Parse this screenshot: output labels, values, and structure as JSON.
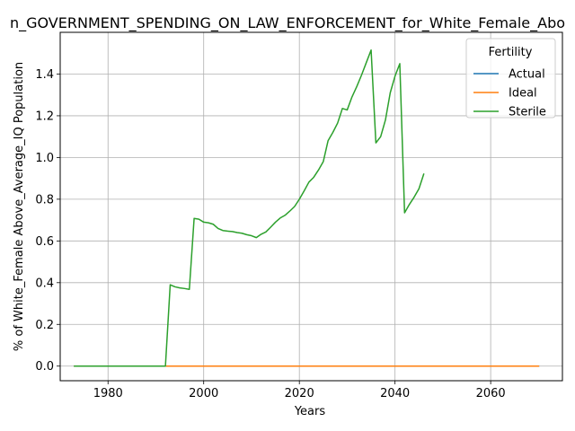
{
  "chart_data": {
    "type": "line",
    "title": "n_GOVERNMENT_SPENDING_ON_LAW_ENFORCEMENT_for_White_Female_Abo",
    "xlabel": "Years",
    "ylabel": "% of White_Female Above_Average_IQ Population",
    "xlim": [
      1970,
      2075
    ],
    "ylim": [
      -0.07,
      1.6
    ],
    "xticks": [
      1980,
      2000,
      2020,
      2040,
      2060
    ],
    "yticks": [
      0.0,
      0.2,
      0.4,
      0.6,
      0.8,
      1.0,
      1.2,
      1.4
    ],
    "xtick_labels": [
      "1980",
      "2000",
      "2020",
      "2040",
      "2060"
    ],
    "ytick_labels": [
      "0.0",
      "0.2",
      "0.4",
      "0.6",
      "0.8",
      "1.0",
      "1.2",
      "1.4"
    ],
    "grid": true,
    "legend": {
      "title": "Fertility",
      "placement": "top-right",
      "entries": [
        "Actual",
        "Ideal",
        "Sterile"
      ]
    },
    "series": [
      {
        "name": "Actual",
        "color": "#1f77b4",
        "x": [
          1973,
          1980,
          1990,
          2000,
          2010,
          2020,
          2030,
          2040,
          2050,
          2060,
          2070
        ],
        "y": [
          0,
          0,
          0,
          0,
          0,
          0,
          0,
          0,
          0,
          0,
          0
        ]
      },
      {
        "name": "Ideal",
        "color": "#ff7f0e",
        "x": [
          1973,
          1980,
          1990,
          2000,
          2010,
          2020,
          2030,
          2040,
          2050,
          2060,
          2070
        ],
        "y": [
          0,
          0,
          0,
          0,
          0,
          0,
          0,
          0,
          0,
          0,
          0
        ]
      },
      {
        "name": "Sterile",
        "color": "#2ca02c",
        "x": [
          1973,
          1992,
          1993,
          1994,
          1995,
          1996,
          1997,
          1998,
          1999,
          2000,
          2001,
          2002,
          2003,
          2004,
          2005,
          2006,
          2007,
          2008,
          2009,
          2010,
          2011,
          2012,
          2013,
          2014,
          2015,
          2016,
          2017,
          2018,
          2019,
          2020,
          2021,
          2022,
          2023,
          2024,
          2025,
          2026,
          2027,
          2028,
          2029,
          2030,
          2031,
          2032,
          2033,
          2034,
          2035,
          2036,
          2037,
          2038,
          2039,
          2040,
          2041,
          2042,
          2043,
          2044,
          2045,
          2046
        ],
        "y": [
          0,
          0,
          0.39,
          0.38,
          0.375,
          0.372,
          0.368,
          0.708,
          0.704,
          0.69,
          0.687,
          0.68,
          0.66,
          0.65,
          0.647,
          0.645,
          0.64,
          0.637,
          0.63,
          0.625,
          0.616,
          0.632,
          0.643,
          0.666,
          0.69,
          0.71,
          0.723,
          0.743,
          0.765,
          0.8,
          0.84,
          0.882,
          0.905,
          0.94,
          0.98,
          1.08,
          1.12,
          1.165,
          1.235,
          1.228,
          1.29,
          1.34,
          1.395,
          1.455,
          1.515,
          1.07,
          1.1,
          1.18,
          1.31,
          1.39,
          1.45,
          0.735,
          0.775,
          0.81,
          0.85,
          0.92
        ]
      }
    ]
  }
}
